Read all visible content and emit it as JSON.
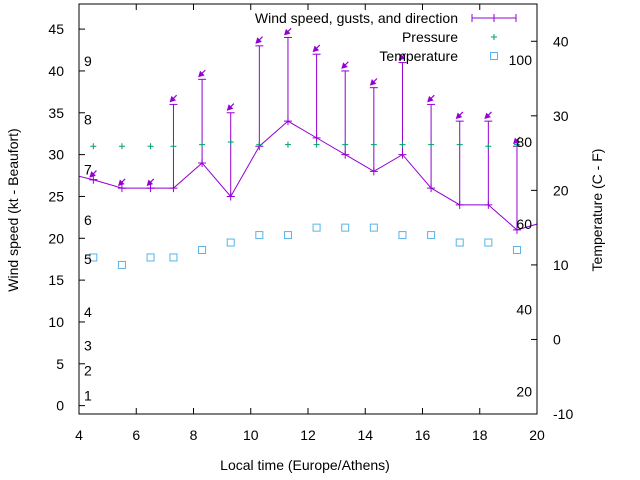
{
  "chart_data": {
    "type": "line",
    "title": "",
    "xlabel": "Local time (Europe/Athens)",
    "ylabel": "Wind speed (kt - Beaufort)",
    "y2label": "Temperature (C - F)",
    "xlim": [
      4,
      20
    ],
    "ylim": [
      -1,
      48
    ],
    "y2lim": [
      -10,
      45
    ],
    "x_ticks": [
      "4",
      "6",
      "8",
      "10",
      "12",
      "14",
      "16",
      "18",
      "20"
    ],
    "y_ticks": [
      "0",
      "5",
      "10",
      "15",
      "20",
      "25",
      "30",
      "35",
      "40",
      "45"
    ],
    "y2_ticks": [
      "-10",
      "0",
      "10",
      "20",
      "30",
      "40"
    ],
    "beaufort_labels": [
      {
        "text": "1",
        "y": 1.2
      },
      {
        "text": "2",
        "y": 4.2
      },
      {
        "text": "3",
        "y": 7.2
      },
      {
        "text": "4",
        "y": 11.2
      },
      {
        "text": "5",
        "y": 17.5
      },
      {
        "text": "6",
        "y": 22.2
      },
      {
        "text": "7",
        "y": 28.2
      },
      {
        "text": "8",
        "y": 34.2
      },
      {
        "text": "9",
        "y": 41.2
      }
    ],
    "fahrenheit_labels": [
      {
        "text": "20",
        "y": -7
      },
      {
        "text": "40",
        "y": 4
      },
      {
        "text": "60",
        "y": 15.5
      },
      {
        "text": "80",
        "y": 26.5
      },
      {
        "text": "100",
        "y": 37.5
      }
    ],
    "legend": [
      {
        "label": "Wind speed, gusts, and direction"
      },
      {
        "label": "Pressure"
      },
      {
        "label": "Temperature"
      }
    ],
    "series": [
      {
        "name": "Wind speed, gusts, and direction",
        "color": "#9400d3",
        "x": [
          3.3,
          4.5,
          5.5,
          6.5,
          7.3,
          8.3,
          9.3,
          10.3,
          11.3,
          12.3,
          13.3,
          14.3,
          15.3,
          16.3,
          17.3,
          18.3,
          19.3,
          20.3
        ],
        "values": [
          28,
          27,
          26,
          26,
          26,
          29,
          25,
          31,
          34,
          32,
          30,
          28,
          30,
          26,
          24,
          24,
          21,
          22
        ],
        "gusts": [
          null,
          27,
          26,
          26,
          36,
          39,
          35,
          43,
          44,
          42,
          40,
          38,
          41,
          36,
          34,
          34,
          31,
          null
        ],
        "direction_deg": [
          null,
          315,
          315,
          315,
          315,
          315,
          315,
          315,
          315,
          315,
          315,
          315,
          315,
          315,
          315,
          315,
          315,
          null
        ]
      },
      {
        "name": "Pressure",
        "color": "#009e73",
        "x": [
          4.5,
          5.5,
          6.5,
          7.3,
          8.3,
          9.3,
          10.3,
          11.3,
          12.3,
          13.3,
          14.3,
          15.3,
          16.3,
          17.3,
          18.3,
          19.3
        ],
        "values": [
          31,
          31,
          31,
          31,
          31.2,
          31.5,
          31.2,
          31.2,
          31.2,
          31.2,
          31.2,
          31.2,
          31.2,
          31.2,
          31,
          31.2
        ]
      },
      {
        "name": "Temperature",
        "color": "#56b4e9",
        "x": [
          4.5,
          5.5,
          6.5,
          7.3,
          8.3,
          9.3,
          10.3,
          11.3,
          12.3,
          13.3,
          14.3,
          15.3,
          16.3,
          17.3,
          18.3,
          19.3
        ],
        "values": [
          11,
          10,
          11,
          11,
          12,
          13,
          14,
          14,
          15,
          15,
          15,
          14,
          14,
          13,
          13,
          12
        ]
      }
    ]
  }
}
